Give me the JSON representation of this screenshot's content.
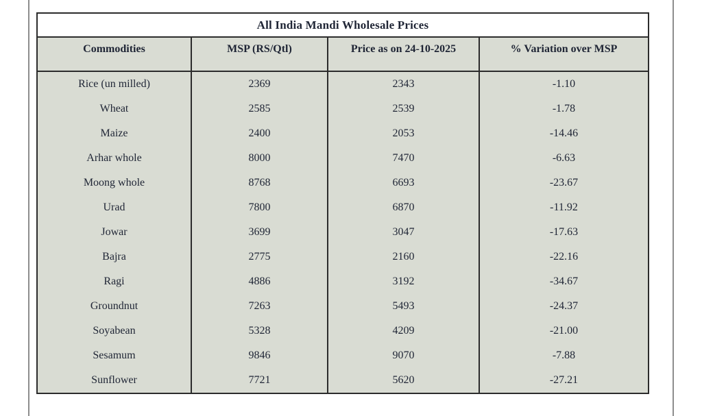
{
  "table": {
    "title": "All India Mandi Wholesale Prices",
    "columns": [
      "Commodities",
      "MSP (RS/Qtl)",
      "Price as on 24-10-2025",
      "% Variation over MSP"
    ],
    "rows": [
      {
        "commodity": "Rice (un milled)",
        "msp": "2369",
        "price": "2343",
        "variation": "-1.10"
      },
      {
        "commodity": "Wheat",
        "msp": "2585",
        "price": "2539",
        "variation": "-1.78"
      },
      {
        "commodity": "Maize",
        "msp": "2400",
        "price": "2053",
        "variation": "-14.46"
      },
      {
        "commodity": "Arhar whole",
        "msp": "8000",
        "price": "7470",
        "variation": "-6.63"
      },
      {
        "commodity": "Moong whole",
        "msp": "8768",
        "price": "6693",
        "variation": "-23.67"
      },
      {
        "commodity": "Urad",
        "msp": "7800",
        "price": "6870",
        "variation": "-11.92"
      },
      {
        "commodity": "Jowar",
        "msp": "3699",
        "price": "3047",
        "variation": "-17.63"
      },
      {
        "commodity": "Bajra",
        "msp": "2775",
        "price": "2160",
        "variation": "-22.16"
      },
      {
        "commodity": "Ragi",
        "msp": "4886",
        "price": "3192",
        "variation": "-34.67"
      },
      {
        "commodity": "Groundnut",
        "msp": "7263",
        "price": "5493",
        "variation": "-24.37"
      },
      {
        "commodity": "Soyabean",
        "msp": "5328",
        "price": "4209",
        "variation": "-21.00"
      },
      {
        "commodity": "Sesamum",
        "msp": "9846",
        "price": "9070",
        "variation": "-7.88"
      },
      {
        "commodity": "Sunflower",
        "msp": "7721",
        "price": "5620",
        "variation": "-27.21"
      }
    ]
  },
  "chart_data": {
    "type": "table",
    "title": "All India Mandi Wholesale Prices",
    "columns": [
      "Commodities",
      "MSP (RS/Qtl)",
      "Price as on 24-10-2025",
      "% Variation over MSP"
    ],
    "rows": [
      [
        "Rice (un milled)",
        2369,
        2343,
        -1.1
      ],
      [
        "Wheat",
        2585,
        2539,
        -1.78
      ],
      [
        "Maize",
        2400,
        2053,
        -14.46
      ],
      [
        "Arhar whole",
        8000,
        7470,
        -6.63
      ],
      [
        "Moong whole",
        8768,
        6693,
        -23.67
      ],
      [
        "Urad",
        7800,
        6870,
        -11.92
      ],
      [
        "Jowar",
        3699,
        3047,
        -17.63
      ],
      [
        "Bajra",
        2775,
        2160,
        -22.16
      ],
      [
        "Ragi",
        4886,
        3192,
        -34.67
      ],
      [
        "Groundnut",
        7263,
        5493,
        -24.37
      ],
      [
        "Soyabean",
        5328,
        4209,
        -21.0
      ],
      [
        "Sesamum",
        9846,
        9070,
        -7.88
      ],
      [
        "Sunflower",
        7721,
        5620,
        -27.21
      ]
    ]
  },
  "colors": {
    "cell_bg": "#d9dcd3",
    "title_bg": "#ffffff",
    "border": "#2b2b2b",
    "text": "#1f2535",
    "page_rule": "#8d8d8d"
  }
}
